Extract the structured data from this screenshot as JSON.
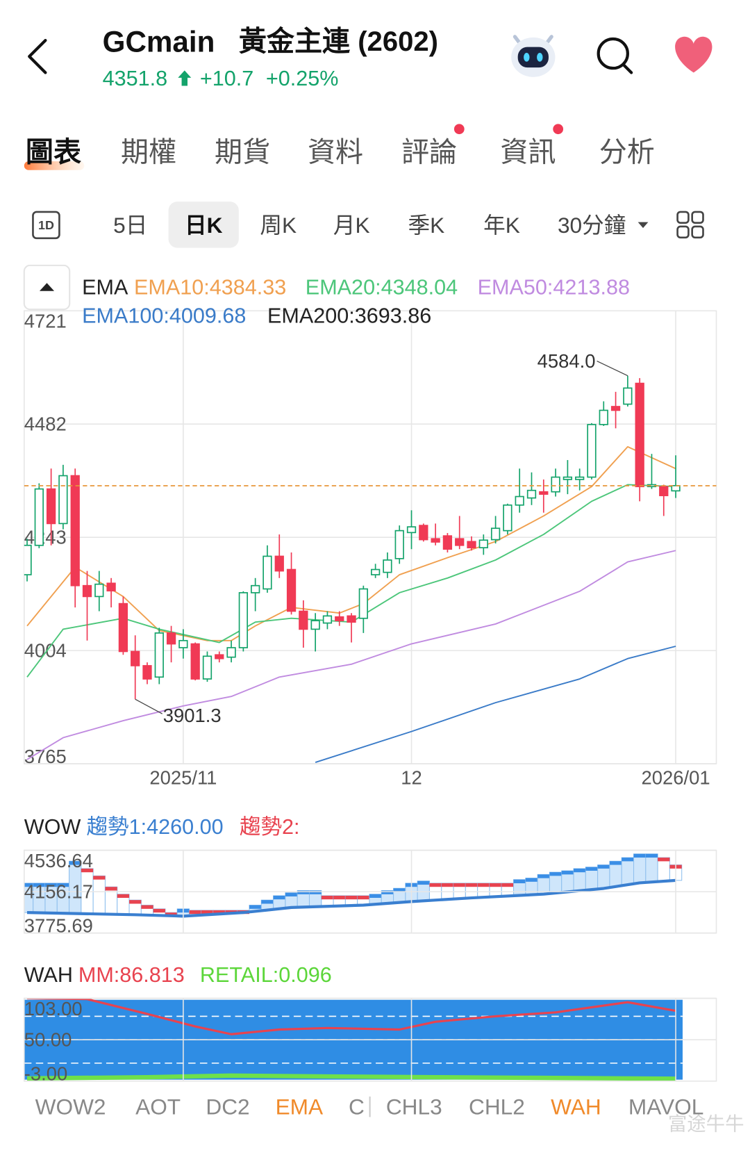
{
  "header": {
    "symbol": "GCmain",
    "name": "黃金主連 (2602)"
  },
  "quote": {
    "price": 4351.8,
    "change": "+10.7",
    "change_pct": "+0.25%"
  },
  "tabs": [
    {
      "label": "圖表",
      "active": true
    },
    {
      "label": "期權"
    },
    {
      "label": "期貨"
    },
    {
      "label": "資料"
    },
    {
      "label": "評論",
      "badge": true
    },
    {
      "label": "資訊",
      "badge": true
    },
    {
      "label": "分析"
    }
  ],
  "periods": [
    {
      "label": "1D",
      "icon": true
    },
    {
      "label": "5日"
    },
    {
      "label": "日K",
      "active": true
    },
    {
      "label": "周K"
    },
    {
      "label": "月K"
    },
    {
      "label": "季K"
    },
    {
      "label": "年K"
    },
    {
      "label": "30分鐘",
      "menu": true
    }
  ],
  "chart_data": [
    {
      "type": "candlestick",
      "legend_title": "EMA",
      "categories": [
        null,
        null,
        null,
        null,
        null,
        null,
        null,
        null,
        null,
        null,
        null,
        null,
        null,
        "2025/11",
        null,
        null,
        null,
        null,
        null,
        null,
        null,
        null,
        null,
        null,
        null,
        null,
        null,
        null,
        null,
        null,
        null,
        null,
        "12",
        null,
        null,
        null,
        null,
        null,
        null,
        null,
        null,
        null,
        null,
        null,
        null,
        null,
        null,
        null,
        null,
        null,
        null,
        null,
        null,
        null,
        "2026/01"
      ],
      "candles": [
        [
          4164,
          4240,
          4150,
          4226
        ],
        [
          4226,
          4357,
          4220,
          4345
        ],
        [
          4345,
          4388,
          4226,
          4272
        ],
        [
          4272,
          4396,
          4260,
          4373
        ],
        [
          4373,
          4388,
          4095,
          4141
        ],
        [
          4141,
          4172,
          4025,
          4118
        ],
        [
          4118,
          4172,
          4087,
          4144
        ],
        [
          4146,
          4157,
          4095,
          4130
        ],
        [
          4103,
          4118,
          3995,
          4002
        ],
        [
          4002,
          4036,
          3901.3,
          3972
        ],
        [
          3972,
          3979,
          3933,
          3944
        ],
        [
          3948,
          4052,
          3933,
          4041
        ],
        [
          4041,
          4056,
          3979,
          4018
        ],
        [
          4010,
          4049,
          3987,
          4025
        ],
        [
          4018,
          4021,
          3941,
          3944
        ],
        [
          3944,
          4002,
          3938,
          3992
        ],
        [
          3995,
          4002,
          3979,
          3987
        ],
        [
          3990,
          4025,
          3979,
          4010
        ],
        [
          4010,
          4129,
          4002,
          4126
        ],
        [
          4126,
          4157,
          4087,
          4141
        ],
        [
          4134,
          4226,
          4126,
          4203
        ],
        [
          4203,
          4249,
          4157,
          4172
        ],
        [
          4175,
          4211,
          4080,
          4087
        ],
        [
          4087,
          4110,
          4010,
          4049
        ],
        [
          4049,
          4083,
          4002,
          4067
        ],
        [
          4062,
          4087,
          4049,
          4077
        ],
        [
          4075,
          4087,
          4056,
          4067
        ],
        [
          4077,
          4083,
          4021,
          4064
        ],
        [
          4072,
          4141,
          4041,
          4134
        ],
        [
          4164,
          4187,
          4157,
          4175
        ],
        [
          4169,
          4211,
          4157,
          4195
        ],
        [
          4198,
          4268,
          4187,
          4257
        ],
        [
          4253,
          4300,
          4218,
          4265
        ],
        [
          4268,
          4272,
          4234,
          4238
        ],
        [
          4240,
          4272,
          4226,
          4233
        ],
        [
          4246,
          4252,
          4211,
          4218
        ],
        [
          4240,
          4288,
          4218,
          4226
        ],
        [
          4234,
          4245,
          4215,
          4221
        ],
        [
          4221,
          4249,
          4206,
          4237
        ],
        [
          4238,
          4288,
          4230,
          4262
        ],
        [
          4257,
          4314,
          4249,
          4311
        ],
        [
          4311,
          4388,
          4295,
          4329
        ],
        [
          4326,
          4380,
          4311,
          4342
        ],
        [
          4339,
          4365,
          4295,
          4334
        ],
        [
          4339,
          4388,
          4329,
          4370
        ],
        [
          4365,
          4406,
          4334,
          4370
        ],
        [
          4365,
          4388,
          4342,
          4370
        ],
        [
          4370,
          4484,
          4365,
          4481
        ],
        [
          4481,
          4530,
          4478,
          4511
        ],
        [
          4519,
          4550,
          4473,
          4511
        ],
        [
          4524,
          4584,
          4519,
          4558
        ],
        [
          4568,
          4579,
          4319,
          4350
        ],
        [
          4350,
          4419,
          4345,
          4354
        ],
        [
          4350,
          4354,
          4288,
          4331
        ],
        [
          4341,
          4416,
          4326,
          4352
        ]
      ],
      "up_color": "#14a36b",
      "down_color": "#f03a55",
      "series": [
        {
          "name": "EMA10:4384.33",
          "color": "#f0a050",
          "x": [
            0,
            4,
            8,
            11,
            15,
            17,
            19,
            22,
            26,
            28,
            31,
            35,
            39,
            43,
            47,
            50,
            54
          ],
          "values": [
            4056,
            4180,
            4118,
            4046,
            4025,
            4025,
            4056,
            4095,
            4083,
            4103,
            4164,
            4200,
            4234,
            4288,
            4350,
            4434,
            4388
          ]
        },
        {
          "name": "EMA20:4348.04",
          "color": "#4cc67a",
          "x": [
            0,
            3,
            8,
            11,
            16,
            19,
            22,
            27,
            31,
            35,
            39,
            43,
            47,
            50,
            54
          ],
          "values": [
            3948,
            4049,
            4072,
            4049,
            4021,
            4064,
            4072,
            4064,
            4126,
            4157,
            4195,
            4249,
            4319,
            4354,
            4350
          ]
        },
        {
          "name": "EMA50:4213.88",
          "color": "#c08be0",
          "x": [
            0,
            3,
            8,
            13,
            17,
            21,
            27,
            32,
            39,
            46,
            50,
            54
          ],
          "values": [
            3774,
            3820,
            3856,
            3887,
            3907,
            3948,
            3975,
            4018,
            4060,
            4129,
            4191,
            4215
          ]
        },
        {
          "name": "EMA100:4009.68",
          "color": "#3a7bc8",
          "x": [
            24,
            32,
            39,
            46,
            50,
            54
          ],
          "values": [
            3768,
            3833,
            3894,
            3944,
            3987,
            4013
          ]
        },
        {
          "name": "EMA200:3693.86",
          "color": "#222222"
        }
      ],
      "ylim": [
        3765,
        4721
      ],
      "yticks": [
        4721,
        4482,
        4243,
        4004,
        3765
      ],
      "annotations": [
        {
          "value": 4584,
          "label": "4584.0"
        },
        {
          "value": 3901.3,
          "label": "3901.3"
        }
      ]
    },
    {
      "type": "wow",
      "title": "WOW",
      "series": [
        {
          "name": "趨勢1:4260.00",
          "color": "#3a7fd0",
          "x": [
            0,
            9,
            13,
            18,
            22,
            28,
            32,
            37,
            43,
            48,
            51,
            54
          ],
          "values": [
            3964,
            3944,
            3931,
            3964,
            4011,
            4032,
            4065,
            4099,
            4133,
            4186,
            4237,
            4260
          ]
        },
        {
          "name": "趨勢2:",
          "color": "#e8434f",
          "values": [
            4234,
            4234,
            4234,
            4234,
            4436,
            4368,
            4301,
            4200,
            4133,
            4079,
            4032,
            3998,
            3964,
            3998,
            3985,
            3985,
            3985,
            3985,
            3985,
            4032,
            4079,
            4119,
            4146,
            4166,
            4166,
            4119,
            4119,
            4119,
            4119,
            4133,
            4166,
            4187,
            4234,
            4254,
            4234,
            4234,
            4234,
            4234,
            4234,
            4234,
            4234,
            4267,
            4281,
            4314,
            4335,
            4348,
            4368,
            4382,
            4402,
            4436,
            4469,
            4503,
            4503,
            4469,
            4402
          ]
        }
      ],
      "ylim": [
        3775.69,
        4536.64
      ],
      "yticks": [
        4536.64,
        4156.17,
        3775.69
      ]
    },
    {
      "type": "wah",
      "title": "WAH",
      "fill": "#2f8de4",
      "series": [
        {
          "name": "MM:86.813",
          "color": "#e8434f",
          "x": [
            0,
            5,
            10,
            14,
            17,
            21,
            25,
            31,
            34,
            39,
            44,
            50,
            54
          ],
          "values": [
            103,
            102,
            83,
            67,
            57,
            63,
            65,
            63,
            73,
            80,
            85,
            98,
            87
          ]
        },
        {
          "name": "RETAIL:0.096",
          "color": "#6ee04a",
          "x": [
            0,
            10,
            17,
            25,
            34,
            44,
            54
          ],
          "values": [
            0.5,
            2,
            4,
            3,
            2,
            1,
            0.1
          ]
        }
      ],
      "ylim": [
        -3,
        103
      ],
      "yticks": [
        {
          "value": 103,
          "label": "103.00"
        },
        {
          "value": 50,
          "label": "50.00"
        },
        {
          "value": -3,
          "label": "-3.00"
        }
      ],
      "reference_lines": [
        80,
        50,
        20
      ]
    }
  ],
  "indicator_tabs": [
    {
      "label": "WOW2"
    },
    {
      "label": "AOT"
    },
    {
      "label": "DC2"
    },
    {
      "label": "EMA",
      "active": true
    },
    {
      "label": "C"
    },
    {
      "label": "CHL3"
    },
    {
      "label": "CHL2"
    },
    {
      "label": "WAH",
      "active": true
    },
    {
      "label": "MAVOL"
    }
  ],
  "watermark": "富途牛牛"
}
